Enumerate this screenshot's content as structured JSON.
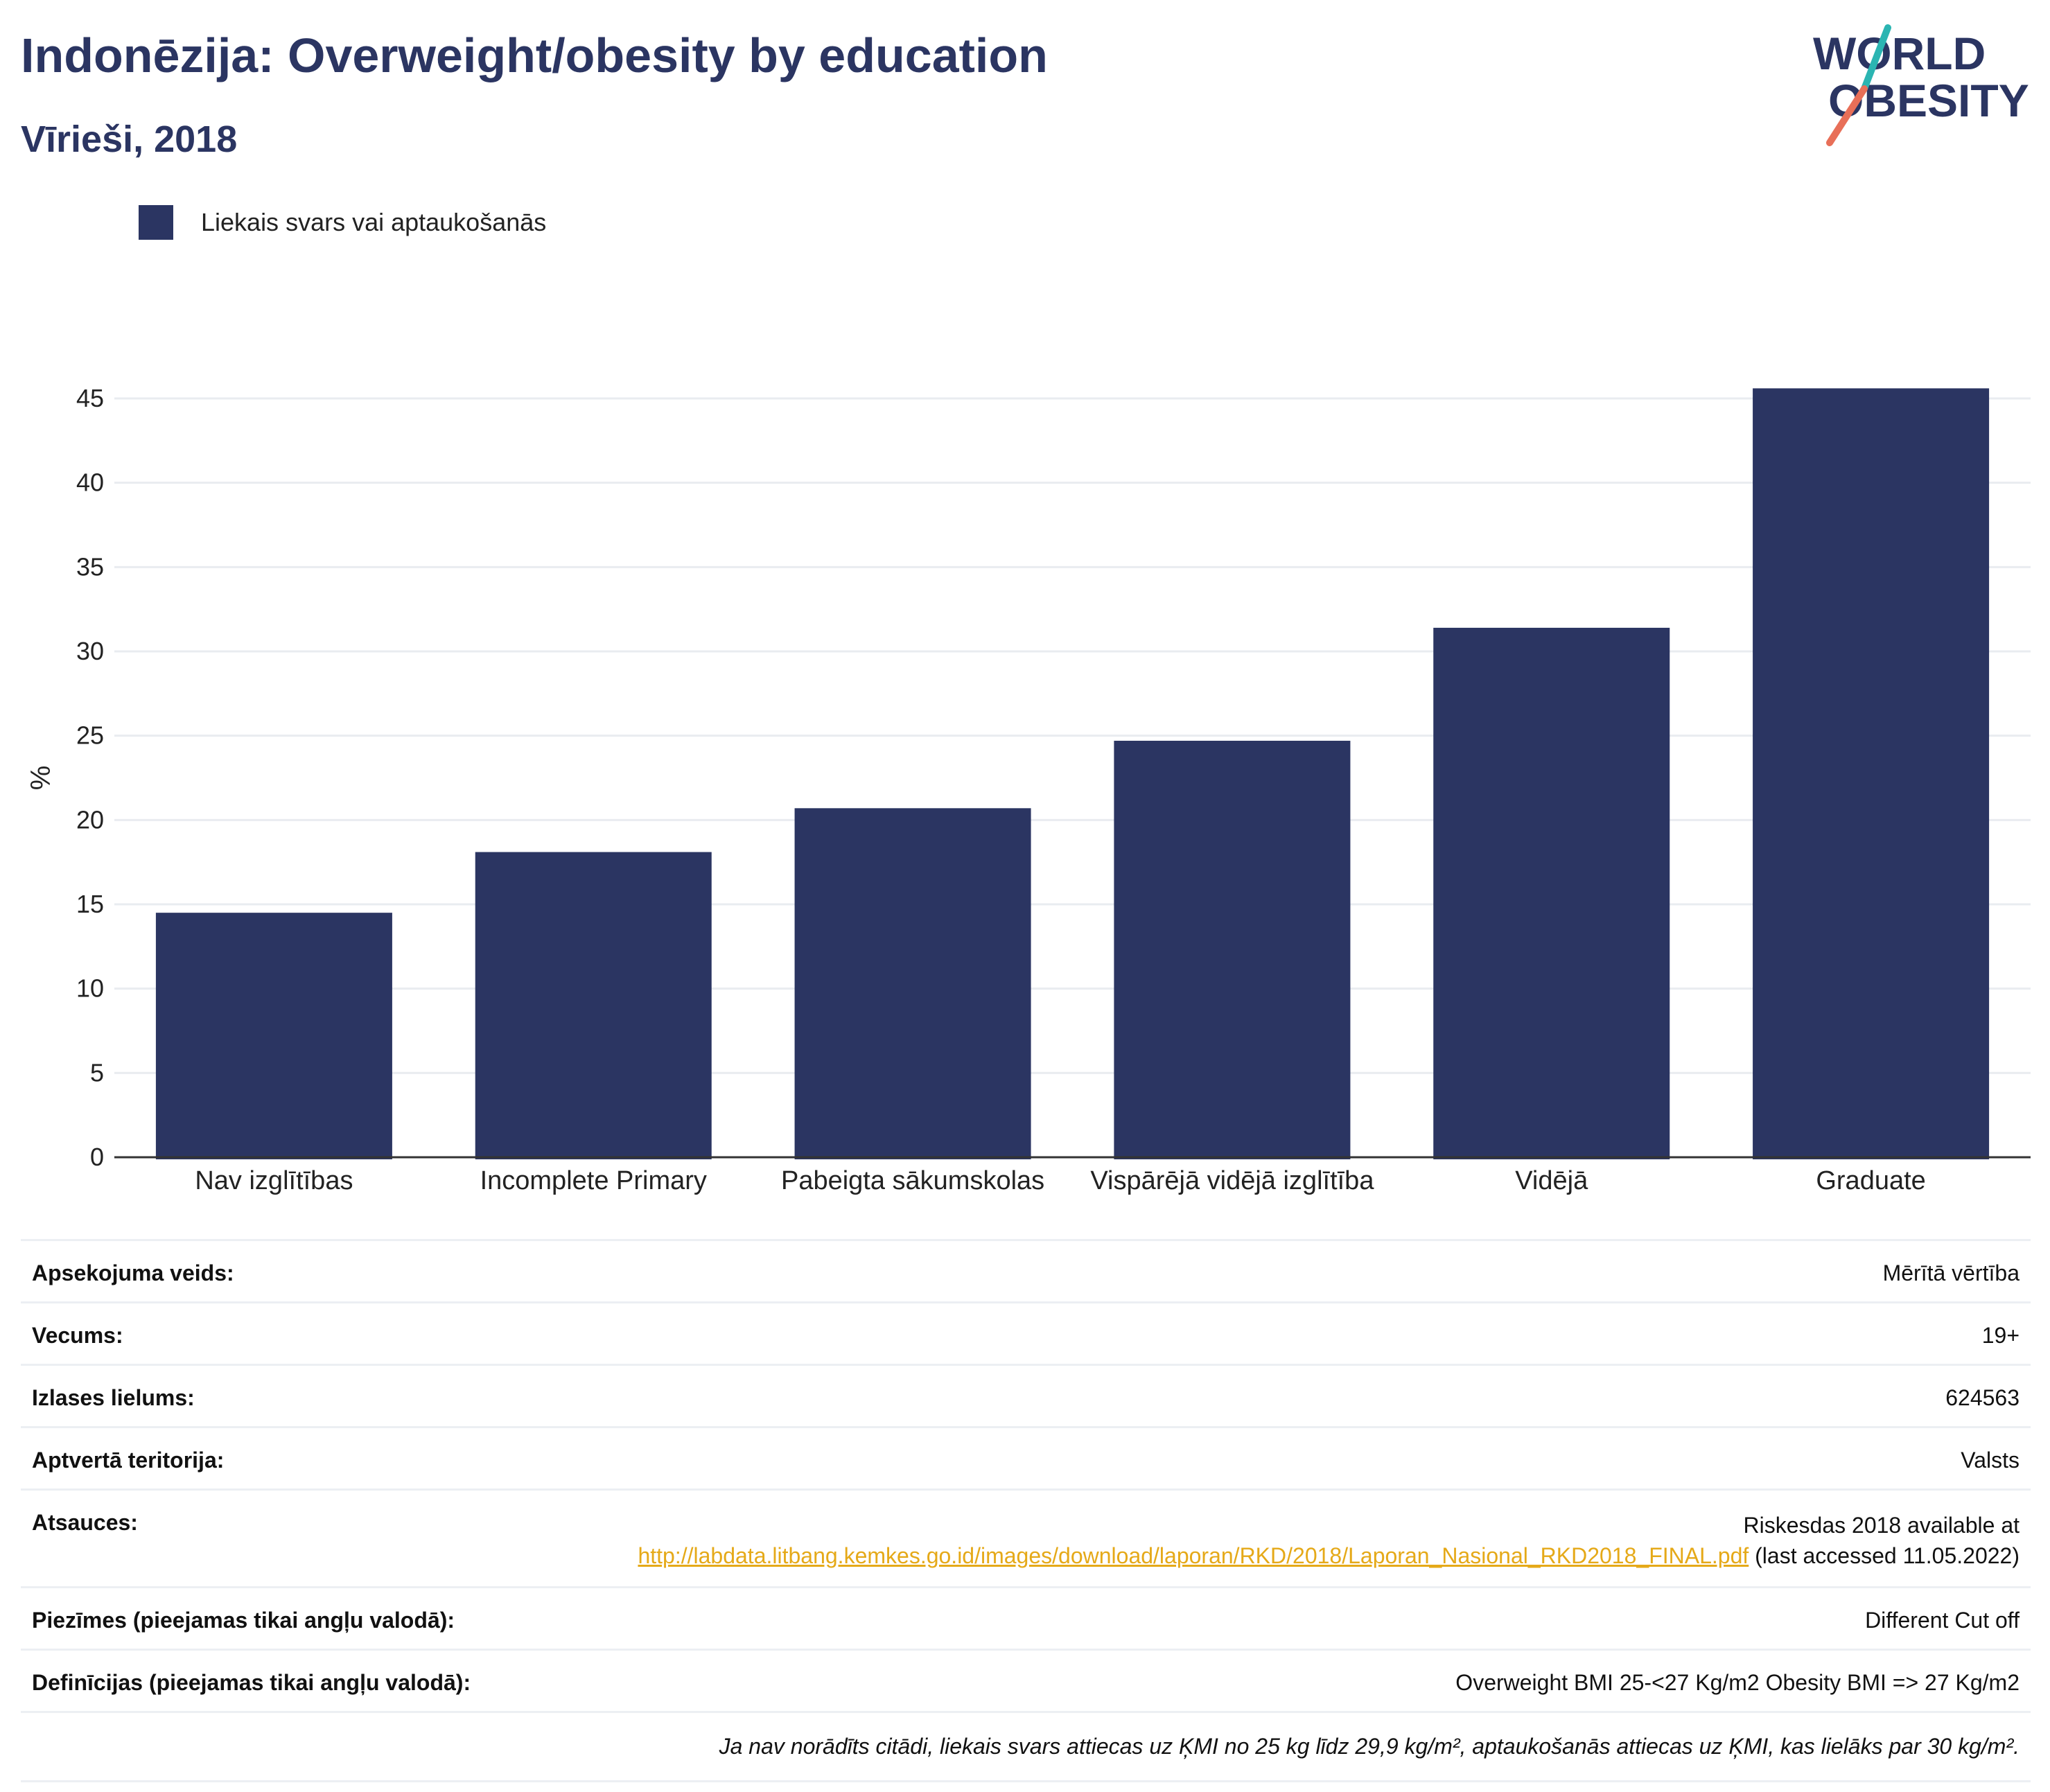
{
  "header": {
    "title": "Indonēzija: Overweight/obesity by education",
    "subtitle": "Vīrieši, 2018"
  },
  "logo": {
    "line1": "WORLD",
    "line2": "OBESITY"
  },
  "colors": {
    "bar": "#2b3562",
    "accent_teal": "#2bb5b2",
    "accent_coral": "#e86f58",
    "link": "#e5a918"
  },
  "chart_data": {
    "type": "bar",
    "categories": [
      "Nav izglītības",
      "Incomplete Primary",
      "Pabeigta sākumskolas",
      "Vispārējā vidējā izglītība",
      "Vidējā",
      "Graduate"
    ],
    "series": [
      {
        "name": "Liekais svars vai aptaukošanās",
        "values": [
          14.5,
          18.1,
          20.7,
          24.7,
          31.4,
          45.6
        ]
      }
    ],
    "ylabel": "%",
    "ylim": [
      0,
      45
    ],
    "yticks": [
      0,
      5,
      10,
      15,
      20,
      25,
      30,
      35,
      40,
      45
    ],
    "grid": true,
    "legend_position": "top-left"
  },
  "meta": {
    "survey_label": "Apsekojuma veids:",
    "survey_value": "Mērītā vērtība",
    "age_label": "Vecums:",
    "age_value": "19+",
    "sample_label": "Izlases lielums:",
    "sample_value": "624563",
    "area_label": "Aptvertā teritorija:",
    "area_value": "Valsts",
    "refs_label": "Atsauces:",
    "refs_prefix": "Riskesdas 2018 available at",
    "refs_link": "http://labdata.litbang.kemkes.go.id/images/download/laporan/RKD/2018/Laporan_Nasional_RKD2018_FINAL.pdf",
    "refs_suffix": "(last accessed 11.05.2022)",
    "notes_label": "Piezīmes (pieejamas tikai angļu valodā):",
    "notes_value": "Different Cut off",
    "defs_label": "Definīcijas (pieejamas tikai angļu valodā):",
    "defs_value": "Overweight BMI 25-<27 Kg/m2 Obesity BMI => 27 Kg/m2",
    "footnote": "Ja nav norādīts citādi, liekais svars attiecas uz ĶMI no 25 kg līdz 29,9 kg/m², aptaukošanās attiecas uz ĶMI, kas lielāks par 30 kg/m²."
  }
}
